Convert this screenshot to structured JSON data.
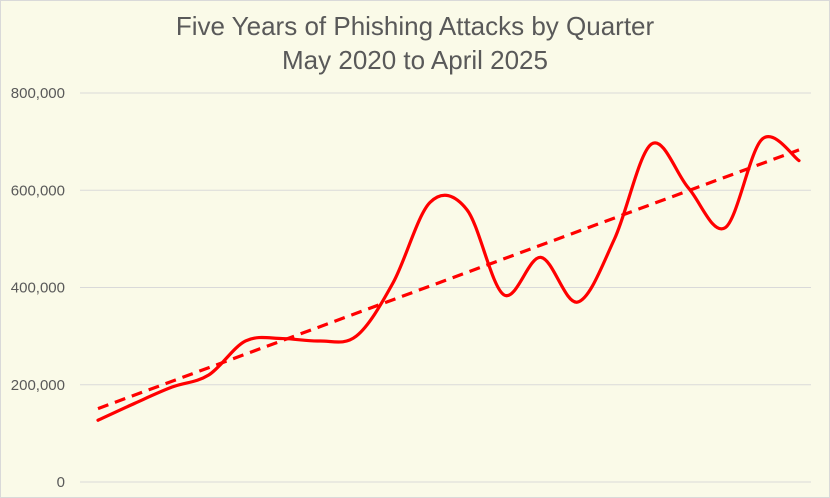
{
  "chart_data": {
    "type": "line",
    "title": "Five Years of Phishing Attacks by Quarter",
    "subtitle": "May 2020 to April 2025",
    "xlabel": "",
    "ylabel": "",
    "ylim": [
      0,
      800000
    ],
    "y_ticks": [
      0,
      200000,
      400000,
      600000,
      800000
    ],
    "y_tick_labels": [
      "0",
      "200,000",
      "400,000",
      "600,000",
      "800,000"
    ],
    "grid": true,
    "legend": "none",
    "x": [
      1,
      2,
      3,
      4,
      5,
      6,
      7,
      8,
      9,
      10,
      11,
      12,
      13,
      14,
      15,
      16,
      17,
      18,
      19,
      20
    ],
    "series": [
      {
        "values": [
          127000,
          162000,
          195000,
          220000,
          290000,
          295000,
          290000,
          300000,
          410000,
          575000,
          560000,
          385000,
          462000,
          370000,
          500000,
          695000,
          605000,
          523000,
          705000,
          661000
        ],
        "color": "#ff0000",
        "style": "solid"
      }
    ],
    "trendline": {
      "type": "linear",
      "start": 151000,
      "end": 683000,
      "color": "#ff0000",
      "style": "dashed"
    }
  }
}
